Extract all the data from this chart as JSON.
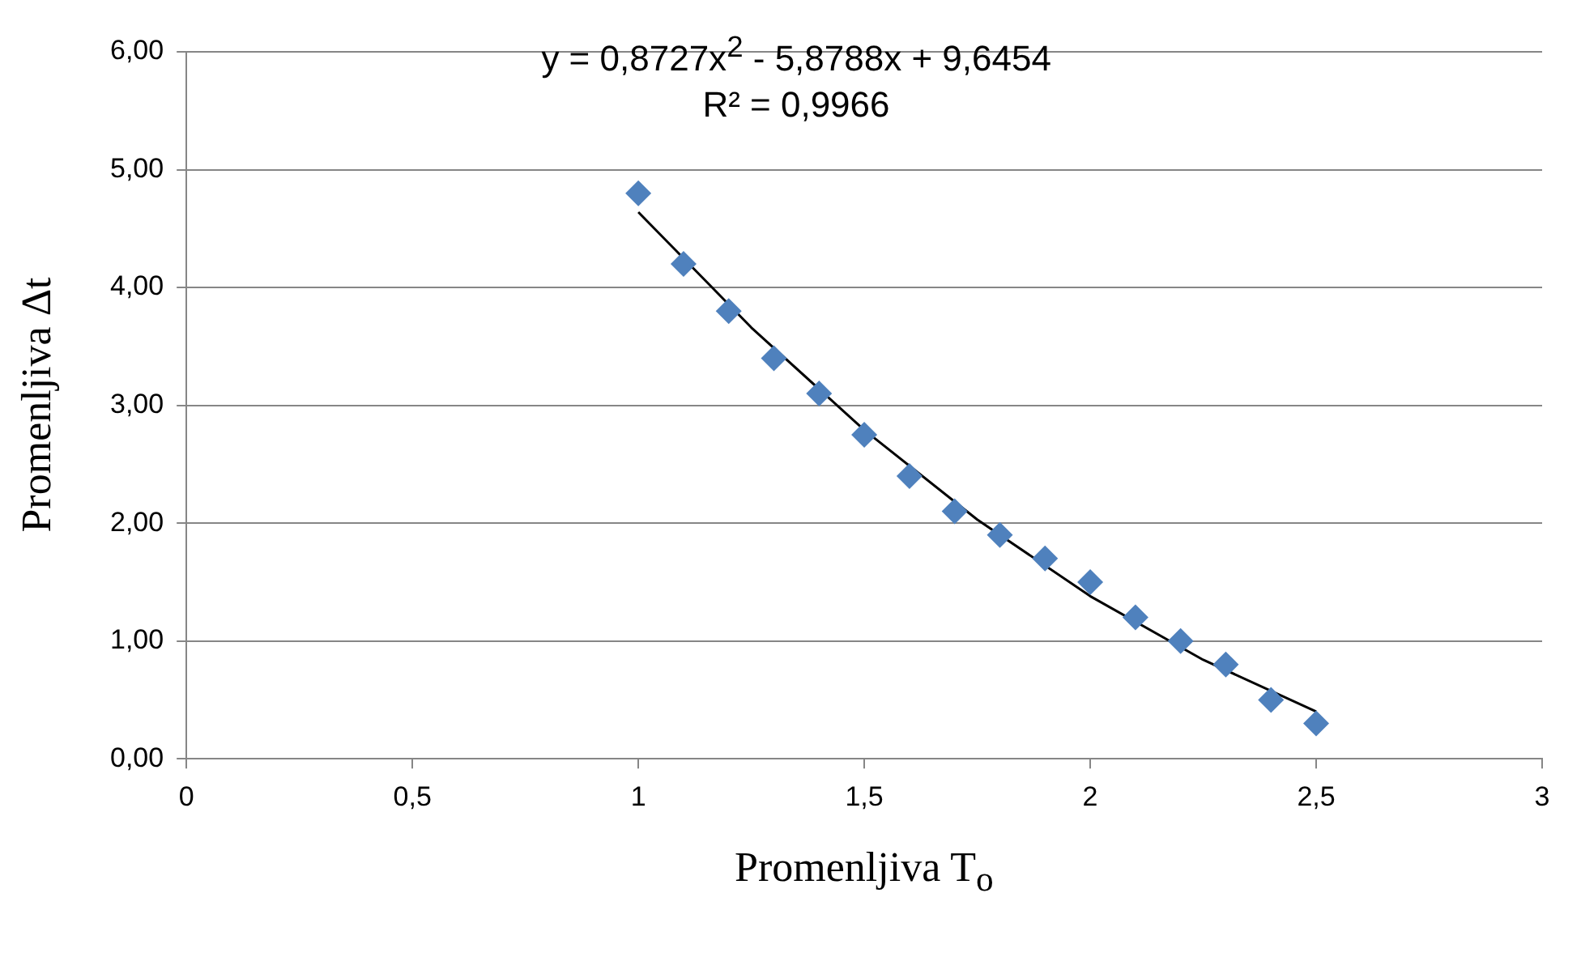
{
  "chart_data": {
    "type": "scatter",
    "xlabel": "Promenljiva T$_{o}$",
    "ylabel": "Promenljiva Δt",
    "annotations": [
      "y = 0,8727x$^{2}$ - 5,8788x + 9,6454",
      "R² = 0,9966"
    ],
    "xlim": [
      0,
      3
    ],
    "xticks": [
      0,
      {
        "value": 0.5,
        "label": "0,5"
      },
      1,
      {
        "value": 1.5,
        "label": "1,5"
      },
      2,
      {
        "value": 2.5,
        "label": "2,5"
      },
      3
    ],
    "ylim": [
      0,
      6
    ],
    "yticks": [
      {
        "value": 0,
        "label": "0,00"
      },
      {
        "value": 1,
        "label": "1,00"
      },
      {
        "value": 2,
        "label": "2,00"
      },
      {
        "value": 3,
        "label": "3,00"
      },
      {
        "value": 4,
        "label": "4,00"
      },
      {
        "value": 5,
        "label": "5,00"
      },
      {
        "value": 6,
        "label": "6,00"
      }
    ],
    "grid": "y",
    "legend": false,
    "marker": "diamond",
    "series": [
      {
        "type": "scatter",
        "color": "#4f81bd",
        "x": [
          1,
          1.1,
          1.2,
          1.3,
          1.4,
          1.5,
          1.6,
          1.7,
          1.8,
          1.9,
          2,
          2.1,
          2.2,
          2.3,
          2.4,
          2.5
        ],
        "values": [
          4.8,
          4.2,
          3.8,
          3.4,
          3.1,
          2.75,
          2.4,
          2.1,
          1.9,
          1.7,
          1.5,
          1.2,
          1.0,
          0.8,
          0.5,
          0.3
        ]
      },
      {
        "type": "line",
        "color": "#000000",
        "marker": "none",
        "x": [
          1,
          1.25,
          1.5,
          1.75,
          2,
          2.25,
          2.5
        ],
        "values": [
          4.64,
          3.66,
          2.79,
          2.03,
          1.38,
          0.84,
          0.4
        ]
      }
    ]
  }
}
